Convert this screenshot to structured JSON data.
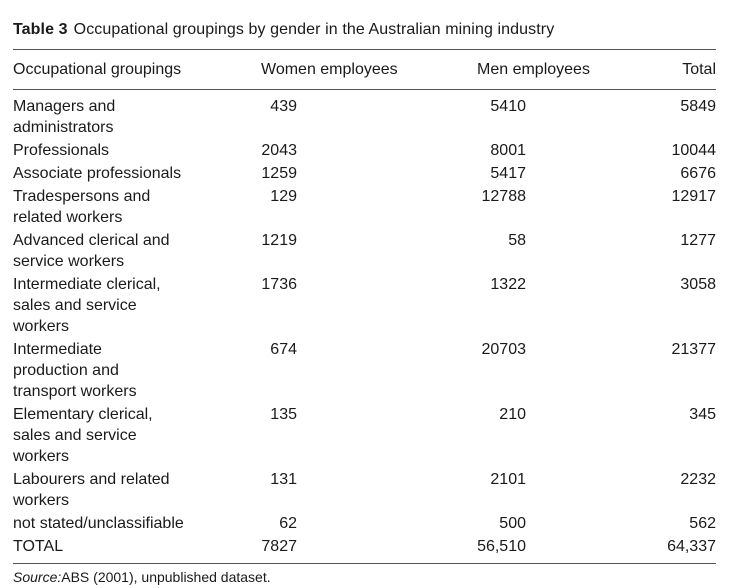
{
  "caption": {
    "number": "Table 3",
    "title": "Occupational groupings by gender in the Australian mining industry"
  },
  "columns": [
    "Occupational groupings",
    "Women employees",
    "Men employees",
    "Total"
  ],
  "rows": [
    {
      "lines": [
        "Managers and",
        "administrators"
      ],
      "women": "439",
      "men": "5410",
      "total": "5849"
    },
    {
      "lines": [
        "Professionals"
      ],
      "women": "2043",
      "men": "8001",
      "total": "10044"
    },
    {
      "lines": [
        "Associate professionals"
      ],
      "women": "1259",
      "men": "5417",
      "total": "6676"
    },
    {
      "lines": [
        "Tradespersons and",
        "related workers"
      ],
      "women": "129",
      "men": "12788",
      "total": "12917"
    },
    {
      "lines": [
        "Advanced clerical and",
        "service workers"
      ],
      "women": "1219",
      "men": "58",
      "total": "1277"
    },
    {
      "lines": [
        "Intermediate clerical,",
        "sales and service",
        "workers"
      ],
      "women": "1736",
      "men": "1322",
      "total": "3058"
    },
    {
      "lines": [
        "Intermediate",
        "production and",
        "transport workers"
      ],
      "women": "674",
      "men": "20703",
      "total": "21377"
    },
    {
      "lines": [
        "Elementary clerical,",
        "sales and service",
        "workers"
      ],
      "women": "135",
      "men": "210",
      "total": "345"
    },
    {
      "lines": [
        "Labourers and related",
        "workers"
      ],
      "women": "131",
      "men": "2101",
      "total": "2232"
    },
    {
      "lines": [
        "not stated/unclassifiable"
      ],
      "women": "62",
      "men": "500",
      "total": "562"
    },
    {
      "lines": [
        "TOTAL"
      ],
      "women": "7827",
      "men": "56,510",
      "total": "64,337"
    }
  ],
  "source": {
    "label": "Source:",
    "text": "ABS (2001), unpublished dataset."
  }
}
